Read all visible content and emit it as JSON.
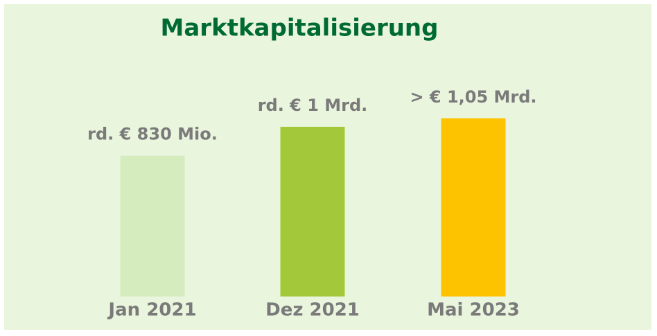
{
  "chart_data": {
    "type": "bar",
    "title": "Marktkapitalisierung",
    "categories": [
      "Jan 2021",
      "Dez 2021",
      "Mai 2023"
    ],
    "values": [
      830,
      1000,
      1050
    ],
    "value_labels": [
      "rd. € 830 Mio.",
      "rd. € 1 Mrd.",
      "> € 1,05 Mrd."
    ],
    "colors": [
      "#d5ecbf",
      "#a3c93b",
      "#fdc300"
    ],
    "ylim": [
      0,
      1200
    ]
  }
}
